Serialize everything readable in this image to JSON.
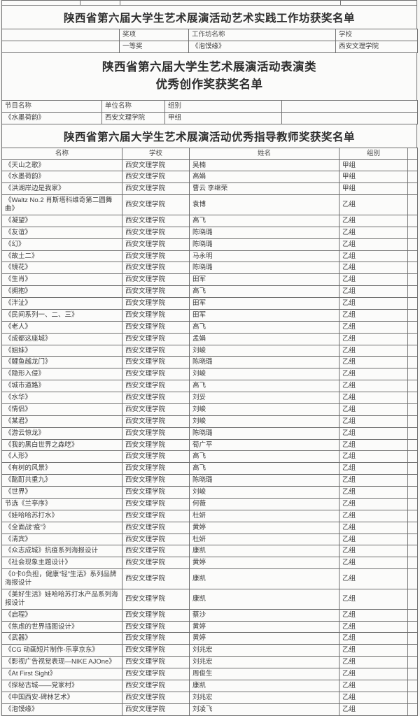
{
  "colors": {
    "border": "#6f6f6f",
    "text": "#3b3b3b",
    "paper": "#fbfbfa"
  },
  "page": {
    "workshop_section": {
      "title": "陕西省第六届大学生艺术展演活动艺术实践工作坊获奖名单",
      "headers": [
        "",
        "奖项",
        "工作坊名称",
        "学校"
      ],
      "rows": [
        [
          "",
          "一等奖",
          "《泡馍缘》",
          "西安文理学院"
        ]
      ]
    },
    "performance_section": {
      "title_line1": "陕西省第六届大学生艺术展演活动表演类",
      "title_line2": "优秀创作奖获奖名单",
      "headers": [
        "节目名称",
        "单位名称",
        "组别",
        ""
      ],
      "rows": [
        [
          "《水墨荷韵》",
          "西安文理学院",
          "甲组",
          ""
        ]
      ]
    },
    "teacher_section": {
      "title": "陕西省第六届大学生艺术展演活动优秀指导教师奖获奖名单",
      "headers": [
        "名称",
        "学校",
        "姓名",
        "组别",
        ""
      ],
      "rows": [
        [
          "《天山之歌》",
          "西安文理学院",
          "吴楠",
          "甲组"
        ],
        [
          "《水墨荷韵》",
          "西安文理学院",
          "高娟",
          "甲组"
        ],
        [
          "《洪湖岸边是我家》",
          "西安文理学院",
          "曹云 李继荣",
          "甲组"
        ],
        [
          "《Waltz No.2 肖斯塔科维奇第二圆舞曲》",
          "西安文理学院",
          "袁博",
          "乙组"
        ],
        [
          "《凝望》",
          "西安文理学院",
          "高飞",
          "乙组"
        ],
        [
          "《友谊》",
          "西安文理学院",
          "陈晓璐",
          "乙组"
        ],
        [
          "《幻》",
          "西安文理学院",
          "陈晓璐",
          "乙组"
        ],
        [
          "《故土二》",
          "西安文理学院",
          "马永明",
          "乙组"
        ],
        [
          "《镜花》",
          "西安文理学院",
          "陈晓璐",
          "乙组"
        ],
        [
          "《生肖》",
          "西安文理学院",
          "田军",
          "乙组"
        ],
        [
          "《拥抱》",
          "西安文理学院",
          "高飞",
          "乙组"
        ],
        [
          "《泮沚》",
          "西安文理学院",
          "田军",
          "乙组"
        ],
        [
          "《民间系列一、二、三》",
          "西安文理学院",
          "田军",
          "乙组"
        ],
        [
          "《老人》",
          "西安文理学院",
          "高飞",
          "乙组"
        ],
        [
          "《成都这座城》",
          "西安文理学院",
          "孟娟",
          "乙组"
        ],
        [
          "《姐妹》",
          "西安文理学院",
          "刘峻",
          "乙组"
        ],
        [
          "《鲤鱼越龙门》",
          "西安文理学院",
          "陈晓璐",
          "乙组"
        ],
        [
          "《隐形入侵》",
          "西安文理学院",
          "刘峻",
          "乙组"
        ],
        [
          "《城市道路》",
          "西安文理学院",
          "高飞",
          "乙组"
        ],
        [
          "《水华》",
          "西安文理学院",
          "刘妥",
          "乙组"
        ],
        [
          "《情侣》",
          "西安文理学院",
          "刘峻",
          "乙组"
        ],
        [
          "《某君》",
          "西安文理学院",
          "刘峻",
          "乙组"
        ],
        [
          "《游云惊龙》",
          "西安文理学院",
          "陈晓璐",
          "乙组"
        ],
        [
          "《我的黑白世界之森呓》",
          "西安文理学院",
          "荀广平",
          "乙组"
        ],
        [
          "《人形》",
          "西安文理学院",
          "高飞",
          "乙组"
        ],
        [
          "《有树的风景》",
          "西安文理学院",
          "高飞",
          "乙组"
        ],
        [
          "《酩酊共重九》",
          "西安文理学院",
          "陈晓璐",
          "乙组"
        ],
        [
          "《世界》",
          "西安文理学院",
          "刘峻",
          "乙组"
        ],
        [
          "节选《兰亭序》",
          "西安文理学院",
          "何薇",
          "乙组"
        ],
        [
          "《娃哈哈苏打水》",
          "西安文理学院",
          "杜妍",
          "乙组"
        ],
        [
          "《全面战“疫”》",
          "西安文理学院",
          "黄婷",
          "乙组"
        ],
        [
          "《清宾》",
          "西安文理学院",
          "杜妍",
          "乙组"
        ],
        [
          "《众志成城》抗疫系列海报设计",
          "西安文理学院",
          "康凯",
          "乙组"
        ],
        [
          "《社会现象主题设计》",
          "西安文理学院",
          "黄婷",
          "乙组"
        ],
        [
          "《0卡0负担，健康“轻”生活》系列品牌海报设计",
          "西安文理学院",
          "康凯",
          "乙组"
        ],
        [
          "《美好生活》娃哈哈苏打水产品系列海报设计",
          "西安文理学院",
          "康凯",
          "乙组"
        ],
        [
          "《启程》",
          "西安文理学院",
          "蔡沙",
          "乙组"
        ],
        [
          "《焦虑的世界插图设计》",
          "西安文理学院",
          "黄婷",
          "乙组"
        ],
        [
          "《武器》",
          "西安文理学院",
          "黄婷",
          "乙组"
        ],
        [
          "《CG 动画短片制作-乐享京东》",
          "西安文理学院",
          "刘兆宏",
          "乙组"
        ],
        [
          "《影视广告视觉表现—NIKE AJOne》",
          "西安文理学院",
          "刘兆宏",
          "乙组"
        ],
        [
          "《At First Sight》",
          "西安文理学院",
          "周俊生",
          "乙组"
        ],
        [
          "《探秘古城——党家村》",
          "西安文理学院",
          "康凯",
          "乙组"
        ],
        [
          "《中国西安·碑林艺术》",
          "西安文理学院",
          "刘兆宏",
          "乙组"
        ],
        [
          "《泡馍缘》",
          "西安文理学院",
          "刘凌飞",
          "乙组"
        ]
      ]
    }
  }
}
